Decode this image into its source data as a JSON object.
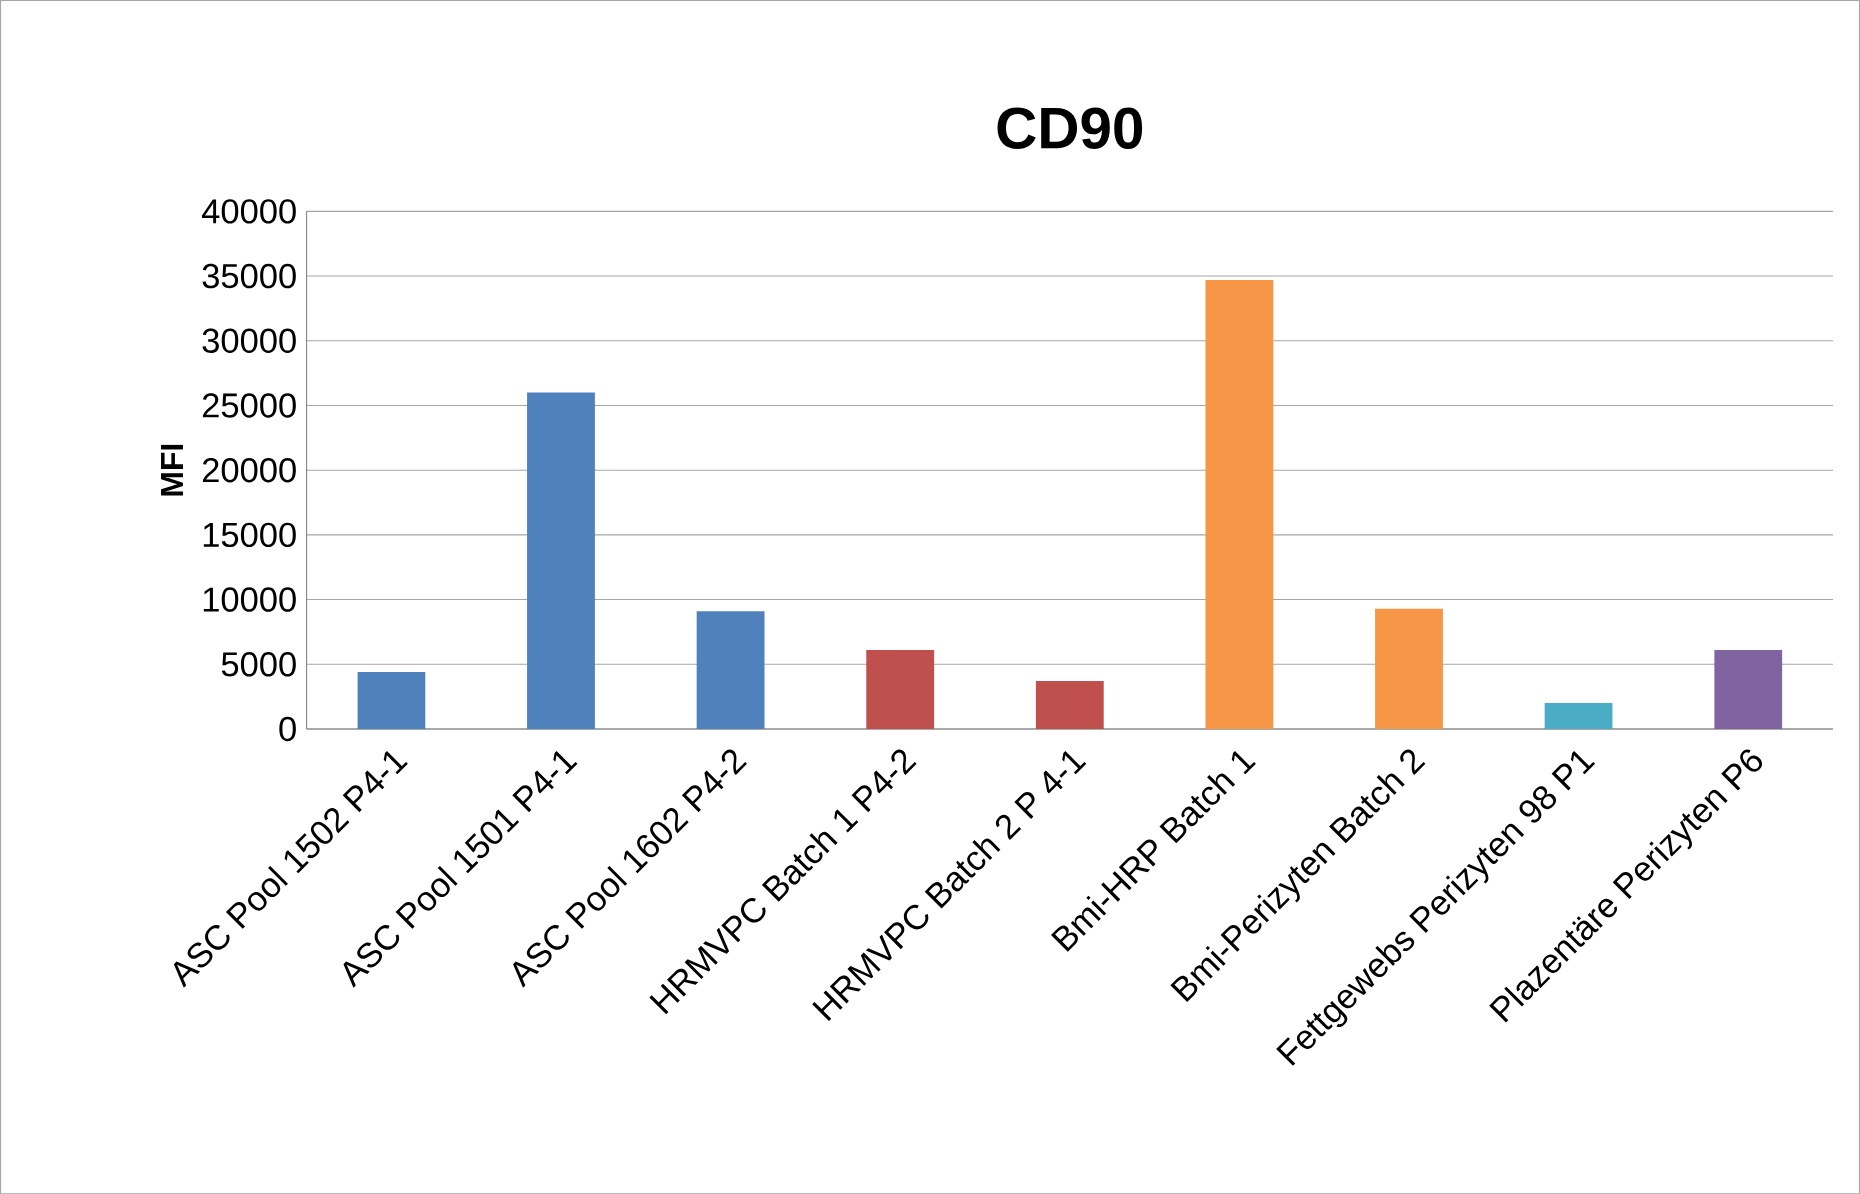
{
  "chart_data": {
    "type": "bar",
    "title": "CD90",
    "ylabel": "MFI",
    "categories": [
      "ASC Pool 1502 P4-1",
      "ASC Pool 1501 P4-1",
      "ASC Pool 1602 P4-2",
      "HRMVPC Batch 1 P4-2",
      "HRMVPC Batch 2 P 4-1",
      "Bmi-HRP Batch 1",
      "Bmi-Perizyten Batch 2",
      "Fettgewebs Perizyten 98 P1",
      "Plazentäre Perizyten P6"
    ],
    "values": [
      4400,
      26000,
      9100,
      6100,
      3700,
      34700,
      9300,
      2000,
      6100
    ],
    "colors": [
      "#4f81bd",
      "#4f81bd",
      "#4f81bd",
      "#c0504d",
      "#c0504d",
      "#f79646",
      "#f79646",
      "#4bacc6",
      "#8064a2"
    ],
    "ylim": [
      0,
      40000
    ],
    "yticks": [
      0,
      5000,
      10000,
      15000,
      20000,
      25000,
      30000,
      35000,
      40000
    ],
    "grid": "y"
  }
}
